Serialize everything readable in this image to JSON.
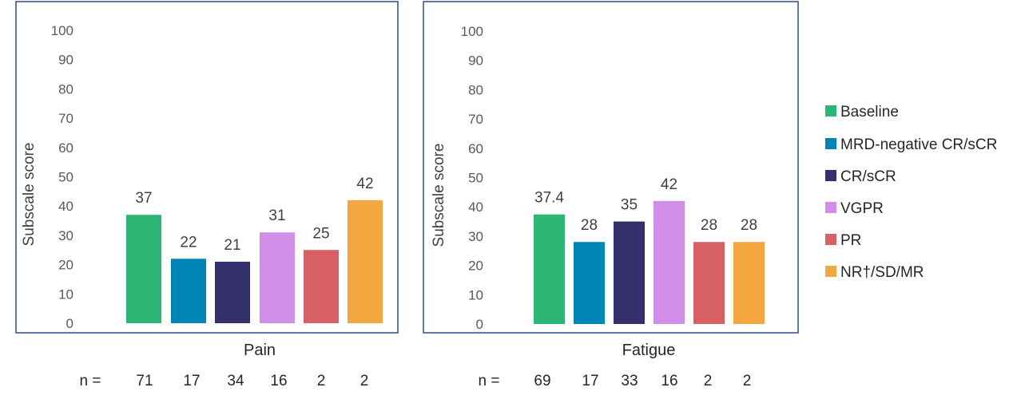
{
  "categories": [
    "Baseline",
    "MRD-negative CR/sCR",
    "CR/sCR",
    "VGPR",
    "PR",
    "NR†/SD/MR"
  ],
  "colors": [
    "#2bb673",
    "#0085b8",
    "#332f6b",
    "#d08ee8",
    "#d66064",
    "#f2a83e"
  ],
  "legend": {
    "labels": [
      "Baseline",
      "MRD-negative CR/sCR",
      " CR/sCR",
      "VGPR",
      "PR",
      "NR†/SD/MR"
    ]
  },
  "n_label": "n =",
  "chart_data": [
    {
      "type": "bar",
      "title": "Pain",
      "ylabel": "Subscale score",
      "ylim": [
        0,
        100
      ],
      "yticks": [
        0,
        10,
        20,
        30,
        40,
        50,
        60,
        70,
        80,
        90,
        100
      ],
      "values": [
        37,
        22,
        21,
        31,
        25,
        42
      ],
      "value_labels": [
        "37",
        "22",
        "21",
        "31",
        "25",
        "42"
      ],
      "n_values": [
        "71",
        "17",
        "34",
        "16",
        "2",
        "2"
      ]
    },
    {
      "type": "bar",
      "title": "Fatigue",
      "ylabel": "Subscale score",
      "ylim": [
        0,
        100
      ],
      "yticks": [
        0,
        10,
        20,
        30,
        40,
        50,
        60,
        70,
        80,
        90,
        100
      ],
      "values": [
        37.4,
        28,
        35,
        42,
        28,
        28
      ],
      "value_labels": [
        "37.4",
        "28",
        "35",
        "42",
        "28",
        "28"
      ],
      "n_values": [
        "69",
        "17",
        "33",
        "16",
        "2",
        "2"
      ]
    }
  ]
}
